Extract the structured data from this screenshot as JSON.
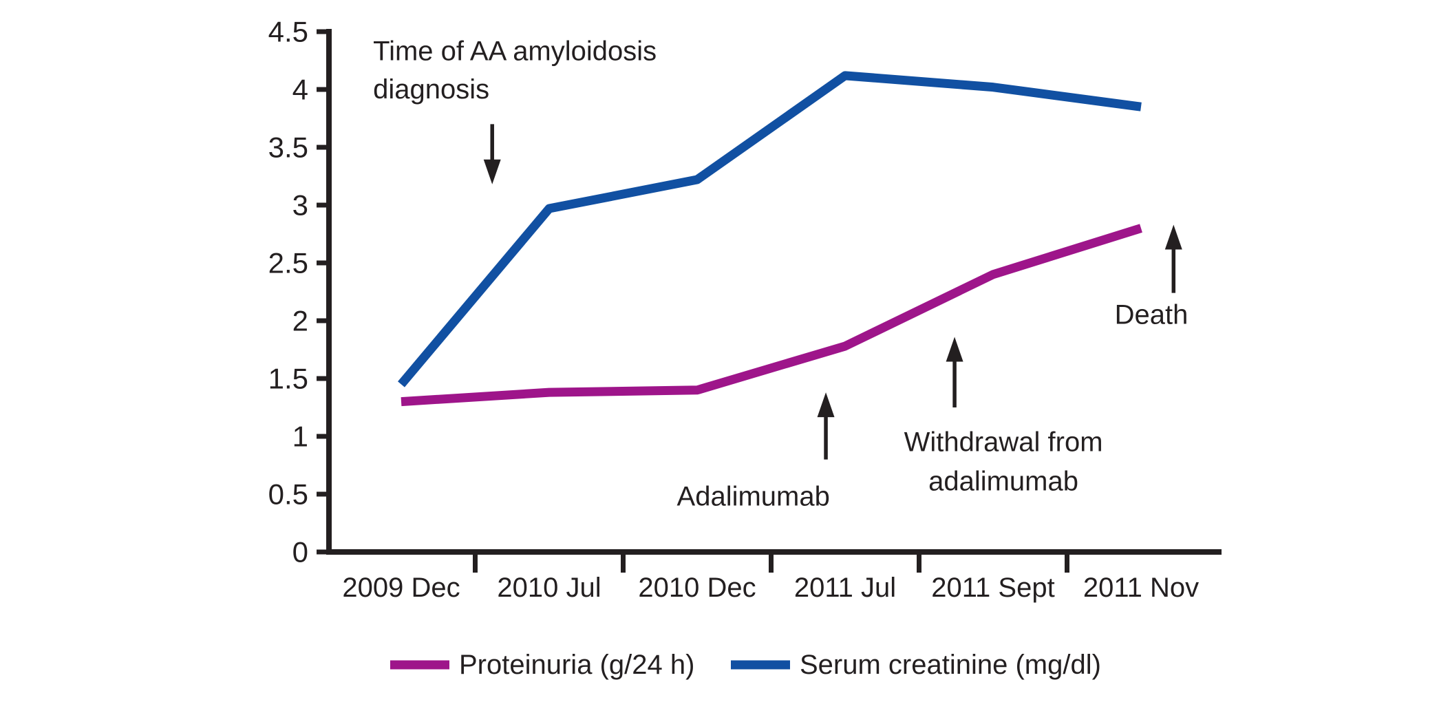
{
  "figure": {
    "background_color": "#ffffff",
    "axis_color": "#231f20",
    "text_color": "#231f20"
  },
  "chart_data": {
    "type": "line",
    "title": "",
    "xlabel": "",
    "ylabel": "",
    "categories": [
      "2009 Dec",
      "2010 Jul",
      "2010 Dec",
      "2011 Jul",
      "2011 Sept",
      "2011 Nov"
    ],
    "series": [
      {
        "name": "Proteinuria (g/24 h)",
        "color": "#9E158A",
        "values": [
          1.3,
          1.38,
          1.4,
          1.78,
          2.4,
          2.8
        ]
      },
      {
        "name": "Serum creatinine (mg/dl)",
        "color": "#1150A2",
        "values": [
          1.45,
          2.97,
          3.22,
          4.12,
          4.02,
          3.85
        ]
      }
    ],
    "ylim": [
      0,
      4.5
    ],
    "ytick_step": 0.5,
    "ytick_labels": [
      "0",
      "0.5",
      "1",
      "1.5",
      "2",
      "2.5",
      "3",
      "3.5",
      "4",
      "4.5"
    ],
    "grid": false,
    "legend_position": "bottom",
    "annotations": [
      {
        "id": "aa-diagnosis",
        "lines": [
          "Time of AA amyloidosis",
          "diagnosis"
        ],
        "align": "start",
        "text_pos": {
          "x": -0.19,
          "y": [
            4.33,
            4.0
          ]
        },
        "arrow": {
          "x": 0.615,
          "tail_y": 3.7,
          "tip_y": 3.18
        }
      },
      {
        "id": "adalimumab",
        "lines": [
          "Adalimumab"
        ],
        "align": "middle",
        "text_pos": {
          "x": 2.38,
          "y": [
            0.48
          ]
        },
        "arrow": {
          "x": 2.87,
          "tail_y": 0.8,
          "tip_y": 1.38
        }
      },
      {
        "id": "withdrawal",
        "lines": [
          "Withdrawal from",
          "adalimumab"
        ],
        "align": "middle",
        "text_pos": {
          "x": 4.07,
          "y": [
            0.95,
            0.61
          ]
        },
        "arrow": {
          "x": 3.74,
          "tail_y": 1.25,
          "tip_y": 1.86
        }
      },
      {
        "id": "death",
        "lines": [
          "Death"
        ],
        "align": "middle",
        "text_pos": {
          "x": 5.07,
          "y": [
            2.05
          ]
        },
        "arrow": {
          "x": 5.22,
          "tail_y": 2.24,
          "tip_y": 2.83
        }
      }
    ]
  }
}
